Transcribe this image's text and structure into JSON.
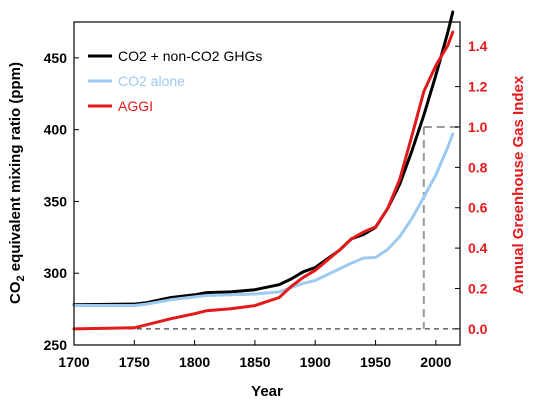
{
  "chart_data": {
    "type": "line",
    "xlabel": "Year",
    "ylabel_main": "CO",
    "ylabel_sub": "2",
    "ylabel_rest": " equivalent mixing ratio (ppm)",
    "y2label": "Annual Greenhouse Gas Index",
    "xlim": [
      1700,
      2020
    ],
    "ylim": [
      250,
      475
    ],
    "y2lim": [
      -0.08,
      1.52
    ],
    "x_ticks": [
      1700,
      1750,
      1800,
      1850,
      1900,
      1950,
      2000
    ],
    "y_ticks": [
      250,
      300,
      350,
      400,
      450
    ],
    "y2_ticks": [
      "0.0",
      "0.2",
      "0.4",
      "0.6",
      "0.8",
      "1.0",
      "1.2",
      "1.4"
    ],
    "grid": false,
    "legend_position": "top-left",
    "series": [
      {
        "name": "CO2 + non-CO2 GHGs",
        "color": "#000000",
        "axis": "left",
        "x": [
          1700,
          1750,
          1760,
          1780,
          1800,
          1810,
          1830,
          1850,
          1870,
          1880,
          1890,
          1900,
          1910,
          1920,
          1930,
          1940,
          1950,
          1960,
          1970,
          1980,
          1990,
          2000,
          2010,
          2014
        ],
        "y": [
          278,
          278.5,
          279.5,
          283,
          285,
          286.5,
          287,
          288.5,
          292,
          296,
          301,
          304,
          310,
          316,
          324,
          327,
          332,
          345,
          362,
          385,
          410,
          438,
          468,
          482
        ]
      },
      {
        "name": "CO2 alone",
        "color": "#9ccaf0",
        "axis": "left",
        "x": [
          1700,
          1750,
          1760,
          1780,
          1800,
          1810,
          1830,
          1850,
          1870,
          1880,
          1890,
          1900,
          1910,
          1920,
          1930,
          1940,
          1950,
          1960,
          1970,
          1980,
          1990,
          2000,
          2010,
          2014
        ],
        "y": [
          277.5,
          277.5,
          278.5,
          281.5,
          283.5,
          284.5,
          285,
          285.5,
          287,
          290,
          293,
          295,
          299,
          303,
          307,
          310.5,
          311,
          316.5,
          325.5,
          338,
          353,
          368.5,
          388,
          397
        ]
      },
      {
        "name": "AGGI",
        "color": "#e31a1c",
        "axis": "right",
        "x": [
          1700,
          1750,
          1760,
          1780,
          1800,
          1810,
          1830,
          1850,
          1870,
          1880,
          1890,
          1900,
          1910,
          1920,
          1930,
          1940,
          1950,
          1960,
          1970,
          1980,
          1990,
          2000,
          2010,
          2014
        ],
        "y": [
          0.0,
          0.005,
          0.02,
          0.05,
          0.075,
          0.09,
          0.1,
          0.115,
          0.155,
          0.21,
          0.255,
          0.29,
          0.34,
          0.39,
          0.445,
          0.48,
          0.505,
          0.595,
          0.74,
          0.955,
          1.175,
          1.305,
          1.405,
          1.47
        ]
      }
    ],
    "reference_lines": {
      "aggi_zero": 0.0,
      "aggi_one": 1.0,
      "year_aggi_one": 1990
    }
  }
}
